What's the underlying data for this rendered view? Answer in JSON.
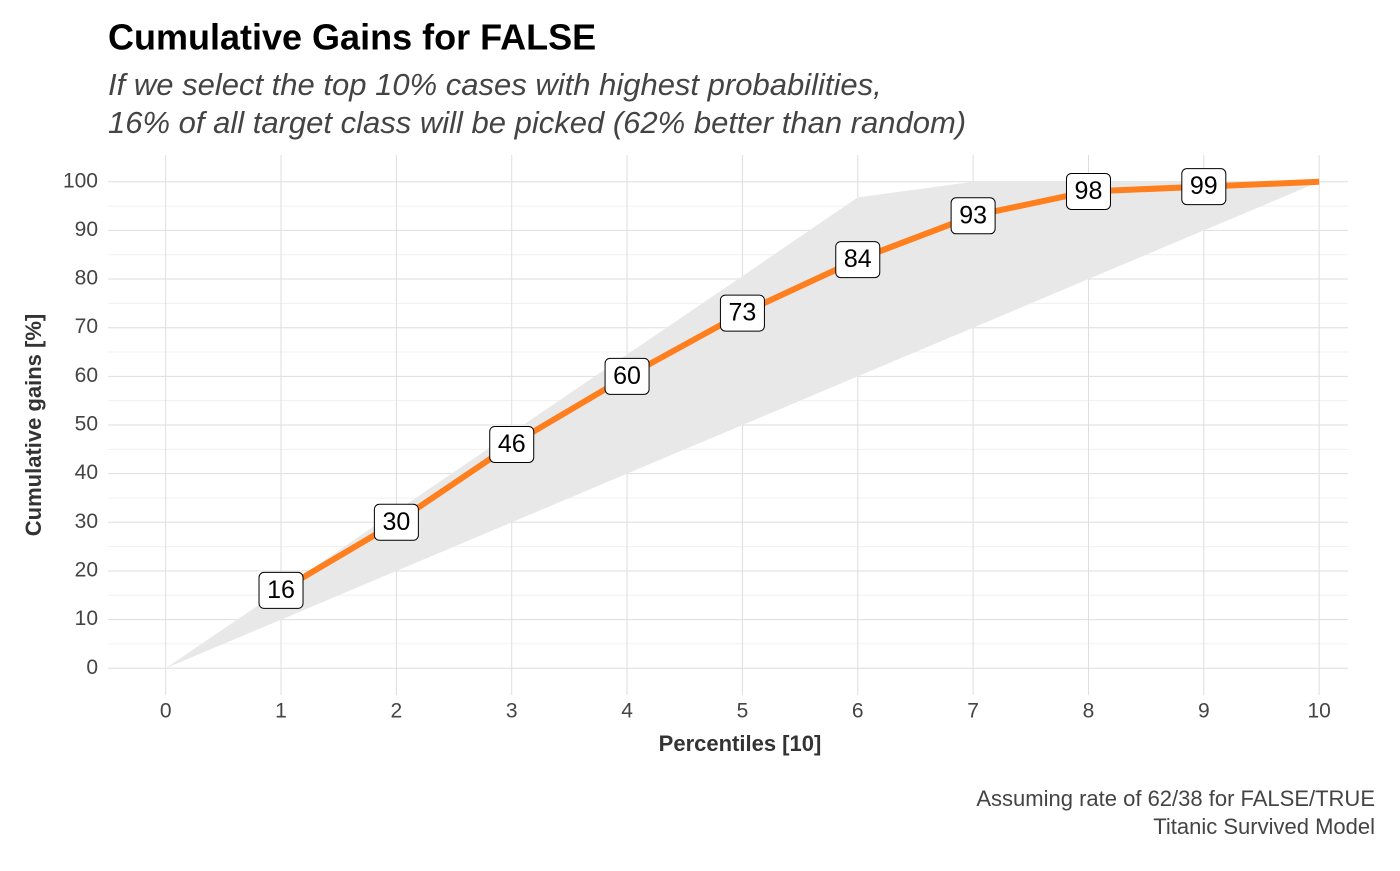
{
  "chart_data": {
    "type": "line",
    "title": "Cumulative Gains for FALSE",
    "subtitle": [
      "If we select the top 10% cases with highest probabilities,",
      "16% of all target class will be picked (62% better than random)"
    ],
    "caption": [
      "Assuming rate of 62/38 for FALSE/TRUE",
      "Titanic Survived Model"
    ],
    "x_label": "Percentiles [10]",
    "y_label": "Cumulative gains [%]",
    "x": [
      1,
      2,
      3,
      4,
      5,
      6,
      7,
      8,
      9,
      10
    ],
    "series": [
      {
        "color": "#ff7f1e",
        "values": [
          16,
          30,
          46,
          60,
          73,
          84,
          93,
          98,
          99,
          100
        ],
        "value_labels": [
          "16",
          "30",
          "46",
          "60",
          "73",
          "84",
          "93",
          "98",
          "99",
          null
        ]
      }
    ],
    "band": {
      "color": "#e8e8e8",
      "x": [
        0,
        1,
        2,
        3,
        4,
        5,
        6,
        7,
        8,
        9,
        10
      ],
      "upper": [
        0,
        16.1,
        32.3,
        48.4,
        64.5,
        80.6,
        96.8,
        100,
        100,
        100,
        100
      ],
      "lower": [
        0,
        10,
        20,
        30,
        40,
        50,
        60,
        70,
        80,
        90,
        100
      ]
    },
    "xlim": [
      -0.5,
      10.25
    ],
    "ylim": [
      -5.5,
      105.5
    ],
    "xticks": [
      0,
      1,
      2,
      3,
      4,
      5,
      6,
      7,
      8,
      9,
      10
    ],
    "yticks": [
      0,
      10,
      20,
      30,
      40,
      50,
      60,
      70,
      80,
      90,
      100
    ],
    "y_minor_grid": [
      5,
      15,
      25,
      35,
      45,
      55,
      65,
      75,
      85,
      95
    ],
    "grid": true
  }
}
